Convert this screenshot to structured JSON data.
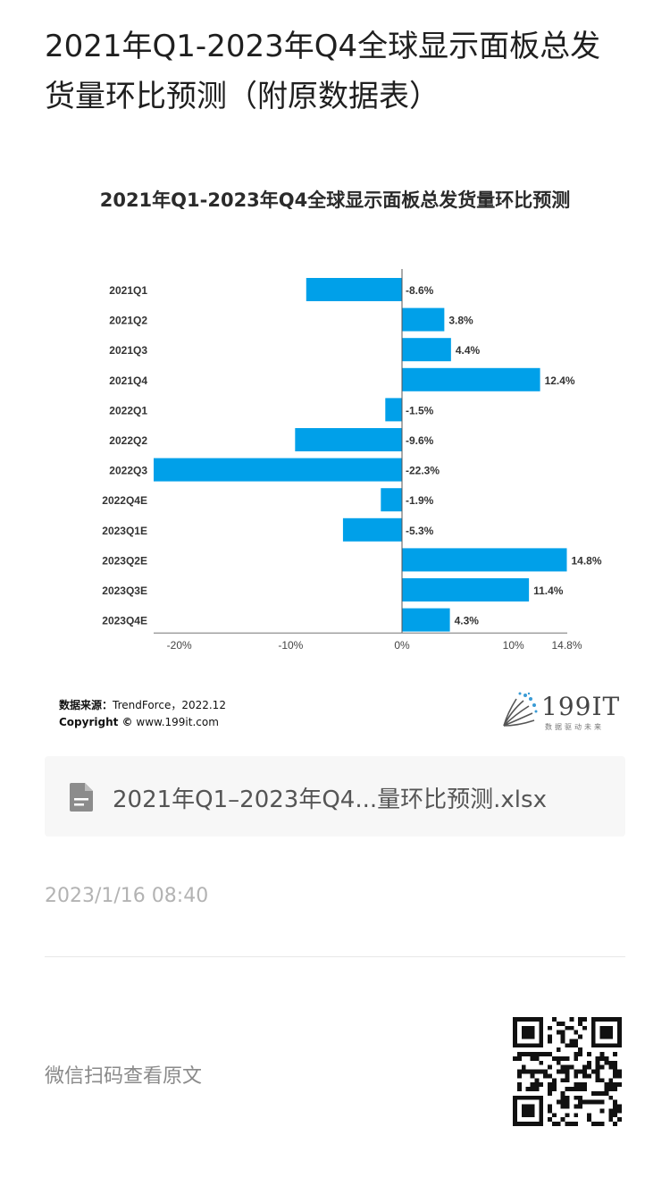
{
  "page": {
    "title": "2021年Q1-2023年Q4全球显示面板总发货量环比预测（附原数据表）"
  },
  "chart": {
    "source_label": "数据来源：",
    "source_value": "TrendForce，2022.12",
    "copyright_label": "Copyright ©",
    "copyright_value": "www.199it.com",
    "logo_text": "199IT",
    "logo_sub": "数据驱动未来"
  },
  "chart_data": {
    "type": "bar",
    "orientation": "horizontal",
    "title": "2021年Q1-2023年Q4全球显示面板总发货量环比预测",
    "categories": [
      "2021Q1",
      "2021Q2",
      "2021Q3",
      "2021Q4",
      "2022Q1",
      "2022Q2",
      "2022Q3",
      "2022Q4E",
      "2023Q1E",
      "2023Q2E",
      "2023Q3E",
      "2023Q4E"
    ],
    "values": [
      -8.6,
      3.8,
      4.4,
      12.4,
      -1.5,
      -9.6,
      -22.3,
      -1.9,
      -5.3,
      14.8,
      11.4,
      4.3
    ],
    "data_labels": [
      "-8.6%",
      "3.8%",
      "4.4%",
      "12.4%",
      "-1.5%",
      "-9.6%",
      "-22.3%",
      "-1.9%",
      "-5.3%",
      "14.8%",
      "11.4%",
      "4.3%"
    ],
    "xticks": [
      -20,
      -10,
      0,
      10,
      14.8
    ],
    "xtick_labels": [
      "-20%",
      "-10%",
      "0%",
      "10%",
      "14.8%"
    ],
    "xlim": [
      -22.3,
      14.8
    ],
    "color": "#00A0E9",
    "grid": false,
    "legend": "none"
  },
  "attachment": {
    "file_name": "2021年Q1–2023年Q4...量环比预测.xlsx",
    "icon": "document-icon"
  },
  "meta": {
    "timestamp": "2023/1/16 08:40",
    "scan_label": "微信扫码查看原文",
    "qr_icon": "qr-code-icon"
  }
}
